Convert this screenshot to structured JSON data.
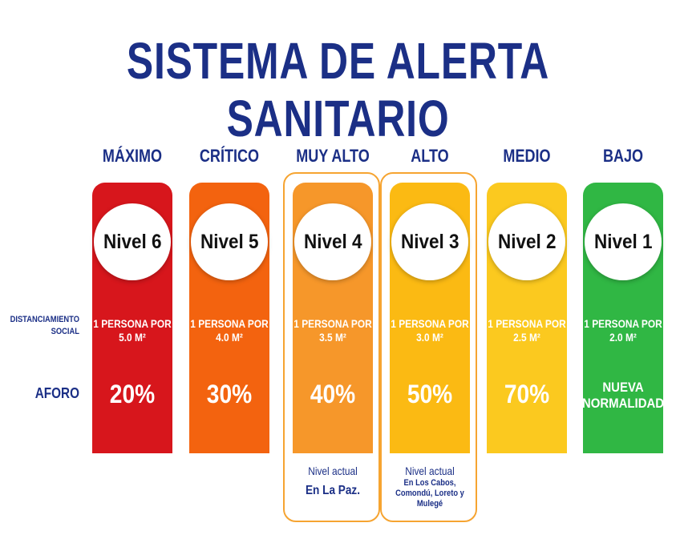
{
  "title": "SISTEMA DE ALERTA SANITARIO",
  "row_labels": {
    "distanciamiento": "DISTANCIAMIENTO SOCIAL",
    "aforo": "AFORO"
  },
  "levels": [
    {
      "name": "MÁXIMO",
      "nivel": "Nivel 6",
      "distancia": "1 PERSONA POR 5.0 M²",
      "aforo": "20%",
      "color": "#d7161c"
    },
    {
      "name": "CRÍTICO",
      "nivel": "Nivel 5",
      "distancia": "1 PERSONA POR 4.0 M²",
      "aforo": "30%",
      "color": "#f3630f"
    },
    {
      "name": "MUY ALTO",
      "nivel": "Nivel 4",
      "distancia": "1 PERSONA POR 3.5 M²",
      "aforo": "40%",
      "color": "#f6972a",
      "nota": {
        "label": "Nivel actual",
        "location": "En La Paz."
      }
    },
    {
      "name": "ALTO",
      "nivel": "Nivel 3",
      "distancia": "1 PERSONA POR 3.0 M²",
      "aforo": "50%",
      "color": "#fbba13",
      "nota": {
        "label": "Nivel actual",
        "location": "En Los Cabos, Comondú, Loreto y Mulegé"
      }
    },
    {
      "name": "MEDIO",
      "nivel": "Nivel 2",
      "distancia": "1 PERSONA POR 2.5 M²",
      "aforo": "70%",
      "color": "#fbc91f"
    },
    {
      "name": "BAJO",
      "nivel": "Nivel 1",
      "distancia": "1 PERSONA POR 2.0 M²",
      "aforo": "NUEVA NORMALIDAD",
      "color": "#30b744"
    }
  ]
}
